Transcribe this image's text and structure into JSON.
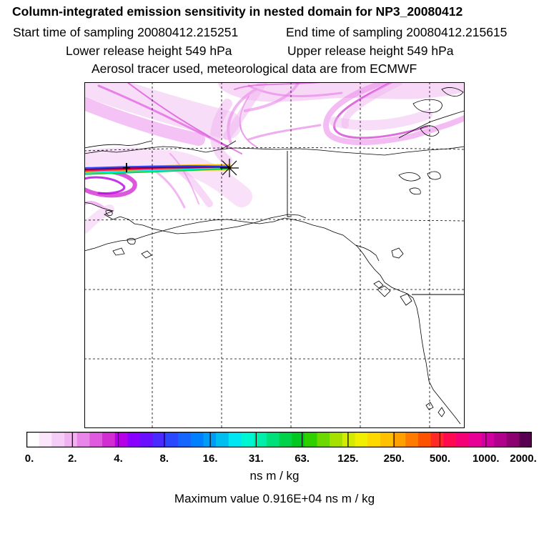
{
  "header": {
    "title": "Column-integrated emission sensitivity in nested domain for NP3_20080412",
    "start_time": "Start time of sampling 20080412.215251",
    "end_time": "End time of sampling 20080412.215615",
    "lower_height": "Lower release height  549 hPa",
    "upper_height": "Upper release height  549 hPa",
    "tracer_note": "Aerosol tracer used, meteorological data are from ECMWF"
  },
  "colorbar": {
    "labels": [
      "0.",
      "2.",
      "4.",
      "8.",
      "16.",
      "31.",
      "63.",
      "125.",
      "250.",
      "500.",
      "1000.",
      "2000."
    ],
    "colors": [
      "#ffffff",
      "#fbe6fb",
      "#f6cdf6",
      "#f0b3f0",
      "#e986e9",
      "#e05ae0",
      "#d22dd2",
      "#b800e6",
      "#8a00ff",
      "#6a10ff",
      "#4a2aff",
      "#2c48ff",
      "#1466ff",
      "#0080ff",
      "#009cf6",
      "#00bff0",
      "#00e6f2",
      "#00f5d2",
      "#00eeaa",
      "#00e07a",
      "#00d24a",
      "#00c820",
      "#2ed000",
      "#6cd800",
      "#a6e000",
      "#d4ea00",
      "#f2ee00",
      "#ffd800",
      "#ffc000",
      "#ffa000",
      "#ff7a00",
      "#ff5200",
      "#ff2a28",
      "#ff0a50",
      "#f60078",
      "#e80096",
      "#d000a0",
      "#b0008c",
      "#8c0070",
      "#5a0050"
    ],
    "units": "ns m / kg",
    "max_value": "Maximum value  0.916E+04 ns m / kg"
  }
}
